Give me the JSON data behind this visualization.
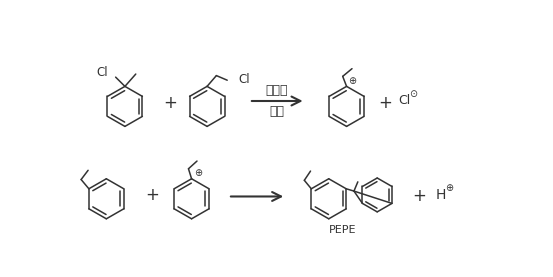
{
  "bg": "#ffffff",
  "lc": "#333333",
  "fig_w": 5.53,
  "fig_h": 2.77,
  "dpi": 100,
  "label_cat": "催化剂",
  "label_rearr": "重排",
  "label_pepe": "PEPE",
  "charge_pos": "⊕",
  "charge_neg": "⊙"
}
